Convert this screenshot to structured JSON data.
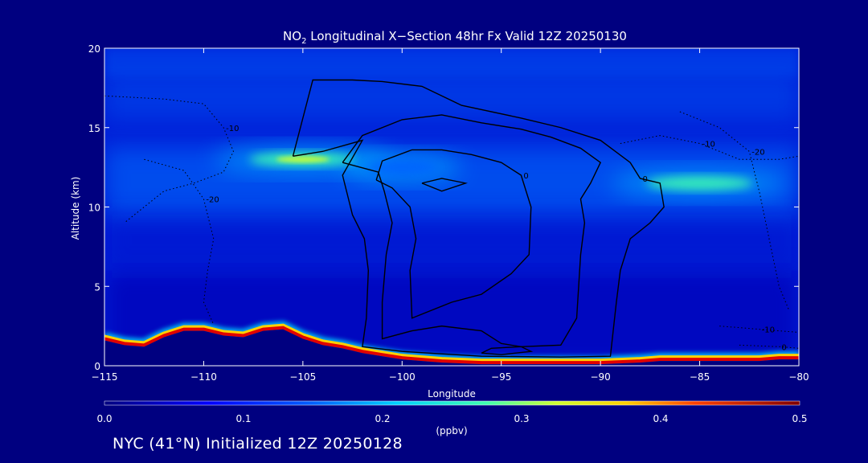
{
  "chart_data": {
    "type": "heatmap",
    "title": {
      "prefix": "NO",
      "subscript": "2",
      "rest": " Longitudinal X−Section 48hr  Fx Valid 12Z 20250130"
    },
    "xlabel": "Longitude",
    "ylabel": "Altitude (km)",
    "xlim": [
      -115,
      -80
    ],
    "ylim": [
      0,
      20
    ],
    "xticks": [
      -115,
      -110,
      -105,
      -100,
      -95,
      -90,
      -85,
      -80
    ],
    "xtick_labels": [
      "−115",
      "−110",
      "−105",
      "−100",
      "−95",
      "−90",
      "−85",
      "−80"
    ],
    "yticks": [
      0,
      5,
      10,
      15,
      20
    ],
    "ytick_labels": [
      "0",
      "5",
      "10",
      "15",
      "20"
    ],
    "colorbar": {
      "min": 0.0,
      "max": 0.5,
      "ticks": [
        0.0,
        0.1,
        0.2,
        0.3,
        0.4,
        0.5
      ],
      "tick_labels": [
        "0.0",
        "0.1",
        "0.2",
        "0.3",
        "0.4",
        "0.5"
      ],
      "unit": "(ppbv)"
    },
    "terrain": {
      "lon": [
        -115,
        -114,
        -113,
        -112,
        -111,
        -110,
        -109,
        -108,
        -107,
        -106,
        -105,
        -104,
        -103,
        -102,
        -101,
        -100,
        -99,
        -98,
        -97,
        -96,
        -95,
        -94,
        -93,
        -92,
        -91,
        -90,
        -89,
        -88,
        -87,
        -86,
        -85,
        -84,
        -83,
        -82,
        -81,
        -80
      ],
      "alt_km": [
        1.8,
        1.5,
        1.4,
        2.0,
        2.4,
        2.4,
        2.1,
        2.0,
        2.4,
        2.5,
        1.9,
        1.5,
        1.3,
        1.0,
        0.8,
        0.6,
        0.5,
        0.4,
        0.35,
        0.3,
        0.3,
        0.3,
        0.3,
        0.3,
        0.3,
        0.3,
        0.35,
        0.4,
        0.5,
        0.5,
        0.5,
        0.5,
        0.5,
        0.5,
        0.6,
        0.6
      ]
    },
    "concentration_features": [
      {
        "lon": [
          -108,
          -102
        ],
        "alt_km": [
          12,
          14
        ],
        "ppbv": 0.3
      },
      {
        "lon": [
          -102,
          -98
        ],
        "alt_km": [
          11.5,
          13.5
        ],
        "ppbv": 0.15
      },
      {
        "lon": [
          -88,
          -82
        ],
        "alt_km": [
          10.5,
          12.5
        ],
        "ppbv": 0.25
      },
      {
        "lon": [
          -115,
          -80
        ],
        "alt_km": [
          0,
          0.5
        ],
        "ppbv": 0.5
      }
    ],
    "contours": [
      {
        "label": "0",
        "style": "solid",
        "points": [
          [
            -105.5,
            13.2
          ],
          [
            -104.5,
            18
          ],
          [
            -102.5,
            18
          ],
          [
            -101,
            17.9
          ],
          [
            -99,
            17.6
          ],
          [
            -97,
            16.4
          ],
          [
            -94,
            15.6
          ],
          [
            -92,
            15
          ],
          [
            -90,
            14.2
          ],
          [
            -88.5,
            12.8
          ],
          [
            -88,
            11.8
          ],
          [
            -87,
            11.5
          ],
          [
            -86.8,
            10
          ],
          [
            -87.5,
            9
          ],
          [
            -88.5,
            8
          ],
          [
            -89,
            6
          ],
          [
            -89.2,
            4
          ],
          [
            -89.5,
            0.6
          ],
          [
            -92,
            0.55
          ],
          [
            -96,
            0.6
          ],
          [
            -100,
            0.9
          ],
          [
            -102,
            1.2
          ],
          [
            -101.8,
            3
          ],
          [
            -101.7,
            6
          ],
          [
            -101.9,
            8
          ],
          [
            -102.5,
            9.5
          ],
          [
            -103,
            12
          ],
          [
            -102,
            14.2
          ],
          [
            -104,
            13.5
          ],
          [
            -105.5,
            13.2
          ]
        ]
      },
      {
        "label": "",
        "style": "solid",
        "points": [
          [
            -103,
            12.8
          ],
          [
            -102,
            14.5
          ],
          [
            -100,
            15.5
          ],
          [
            -98,
            15.8
          ],
          [
            -96,
            15.3
          ],
          [
            -94,
            14.9
          ],
          [
            -92.5,
            14.4
          ],
          [
            -91,
            13.7
          ],
          [
            -90,
            12.8
          ],
          [
            -90.5,
            11.5
          ],
          [
            -91,
            10.5
          ],
          [
            -90.8,
            9
          ],
          [
            -91,
            7
          ],
          [
            -91.2,
            3
          ],
          [
            -92,
            1.3
          ],
          [
            -94,
            1.2
          ],
          [
            -95,
            1.4
          ],
          [
            -96,
            2.2
          ],
          [
            -98,
            2.5
          ],
          [
            -99.5,
            2.2
          ],
          [
            -101,
            1.7
          ],
          [
            -101,
            4
          ],
          [
            -100.8,
            7
          ],
          [
            -100.5,
            9
          ],
          [
            -100.9,
            11
          ],
          [
            -101.2,
            12.2
          ],
          [
            -103,
            12.8
          ]
        ]
      },
      {
        "label": "0",
        "style": "solid",
        "points": [
          [
            -101.3,
            11.7
          ],
          [
            -101,
            12.9
          ],
          [
            -99.5,
            13.6
          ],
          [
            -98,
            13.6
          ],
          [
            -96.5,
            13.3
          ],
          [
            -95,
            12.8
          ],
          [
            -94,
            12
          ],
          [
            -93.5,
            10
          ],
          [
            -93.6,
            7
          ],
          [
            -94.5,
            5.8
          ],
          [
            -96,
            4.5
          ],
          [
            -97.5,
            4
          ],
          [
            -99.5,
            3
          ],
          [
            -99.6,
            6
          ],
          [
            -99.3,
            8
          ],
          [
            -99.6,
            10
          ],
          [
            -100.5,
            11.2
          ],
          [
            -101.3,
            11.7
          ]
        ]
      },
      {
        "label": "",
        "style": "solid",
        "points": [
          [
            -99,
            11.5
          ],
          [
            -98,
            11.8
          ],
          [
            -96.8,
            11.5
          ],
          [
            -98,
            11
          ],
          [
            -99,
            11.5
          ]
        ]
      },
      {
        "label": "",
        "style": "solid",
        "points": [
          [
            -96,
            0.8
          ],
          [
            -95.5,
            1.1
          ],
          [
            -94,
            1.2
          ],
          [
            -93.5,
            0.9
          ],
          [
            -95,
            0.7
          ],
          [
            -96,
            0.8
          ]
        ]
      },
      {
        "label": "-10",
        "style": "dotted",
        "points": [
          [
            -115,
            17
          ],
          [
            -112,
            16.8
          ],
          [
            -110,
            16.5
          ],
          [
            -109,
            15
          ],
          [
            -108.5,
            13.5
          ],
          [
            -109,
            12.2
          ],
          [
            -110.5,
            11.5
          ],
          [
            -112,
            11
          ],
          [
            -113,
            10
          ],
          [
            -114,
            9
          ]
        ]
      },
      {
        "label": "-20",
        "style": "dotted",
        "points": [
          [
            -113,
            13
          ],
          [
            -111,
            12.3
          ],
          [
            -110,
            10.5
          ],
          [
            -109.5,
            8
          ],
          [
            -109.8,
            6
          ],
          [
            -110,
            4
          ],
          [
            -109.5,
            2.6
          ]
        ]
      },
      {
        "label": "-10",
        "style": "dotted",
        "points": [
          [
            -89,
            14
          ],
          [
            -87,
            14.5
          ],
          [
            -85,
            14
          ],
          [
            -83,
            13
          ],
          [
            -81,
            13
          ],
          [
            -80,
            13.2
          ]
        ]
      },
      {
        "label": "-20",
        "style": "dotted",
        "points": [
          [
            -86,
            16
          ],
          [
            -84,
            15
          ],
          [
            -82.5,
            13.5
          ],
          [
            -82,
            11
          ],
          [
            -81.5,
            8
          ],
          [
            -81,
            5
          ],
          [
            -80.5,
            3.5
          ]
        ]
      },
      {
        "label": "-10",
        "style": "dotted",
        "points": [
          [
            -84,
            2.5
          ],
          [
            -82,
            2.3
          ],
          [
            -80,
            2.1
          ]
        ]
      },
      {
        "label": "0",
        "style": "dotted",
        "points": [
          [
            -83,
            1.3
          ],
          [
            -81,
            1.2
          ],
          [
            -80,
            1.1
          ]
        ]
      }
    ]
  },
  "footer": {
    "text": "NYC (41°N) Initialized 12Z 20250128"
  },
  "colors": {
    "background": "#000080",
    "foreground": "#ffffff"
  }
}
